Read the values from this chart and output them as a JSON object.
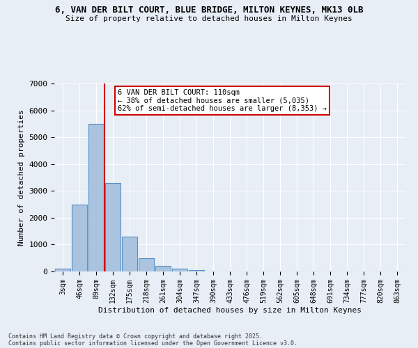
{
  "title_line1": "6, VAN DER BILT COURT, BLUE BRIDGE, MILTON KEYNES, MK13 0LB",
  "title_line2": "Size of property relative to detached houses in Milton Keynes",
  "xlabel": "Distribution of detached houses by size in Milton Keynes",
  "ylabel": "Number of detached properties",
  "bar_values": [
    100,
    2500,
    5500,
    3300,
    1300,
    500,
    220,
    100,
    60,
    0,
    0,
    0,
    0,
    0,
    0,
    0,
    0,
    0,
    0,
    0,
    0
  ],
  "bin_labels": [
    "3sqm",
    "46sqm",
    "89sqm",
    "132sqm",
    "175sqm",
    "218sqm",
    "261sqm",
    "304sqm",
    "347sqm",
    "390sqm",
    "433sqm",
    "476sqm",
    "519sqm",
    "562sqm",
    "605sqm",
    "648sqm",
    "691sqm",
    "734sqm",
    "777sqm",
    "820sqm",
    "863sqm"
  ],
  "bar_color": "#aac4e0",
  "bar_edge_color": "#5590c8",
  "vline_x_index": 2,
  "vline_color": "#cc0000",
  "annotation_text": "6 VAN DER BILT COURT: 110sqm\n← 38% of detached houses are smaller (5,035)\n62% of semi-detached houses are larger (8,353) →",
  "annotation_box_facecolor": "#ffffff",
  "annotation_border_color": "#cc0000",
  "ylim": [
    0,
    7000
  ],
  "yticks": [
    0,
    1000,
    2000,
    3000,
    4000,
    5000,
    6000,
    7000
  ],
  "footer1": "Contains HM Land Registry data © Crown copyright and database right 2025.",
  "footer2": "Contains public sector information licensed under the Open Government Licence v3.0.",
  "background_color": "#e8eef5"
}
